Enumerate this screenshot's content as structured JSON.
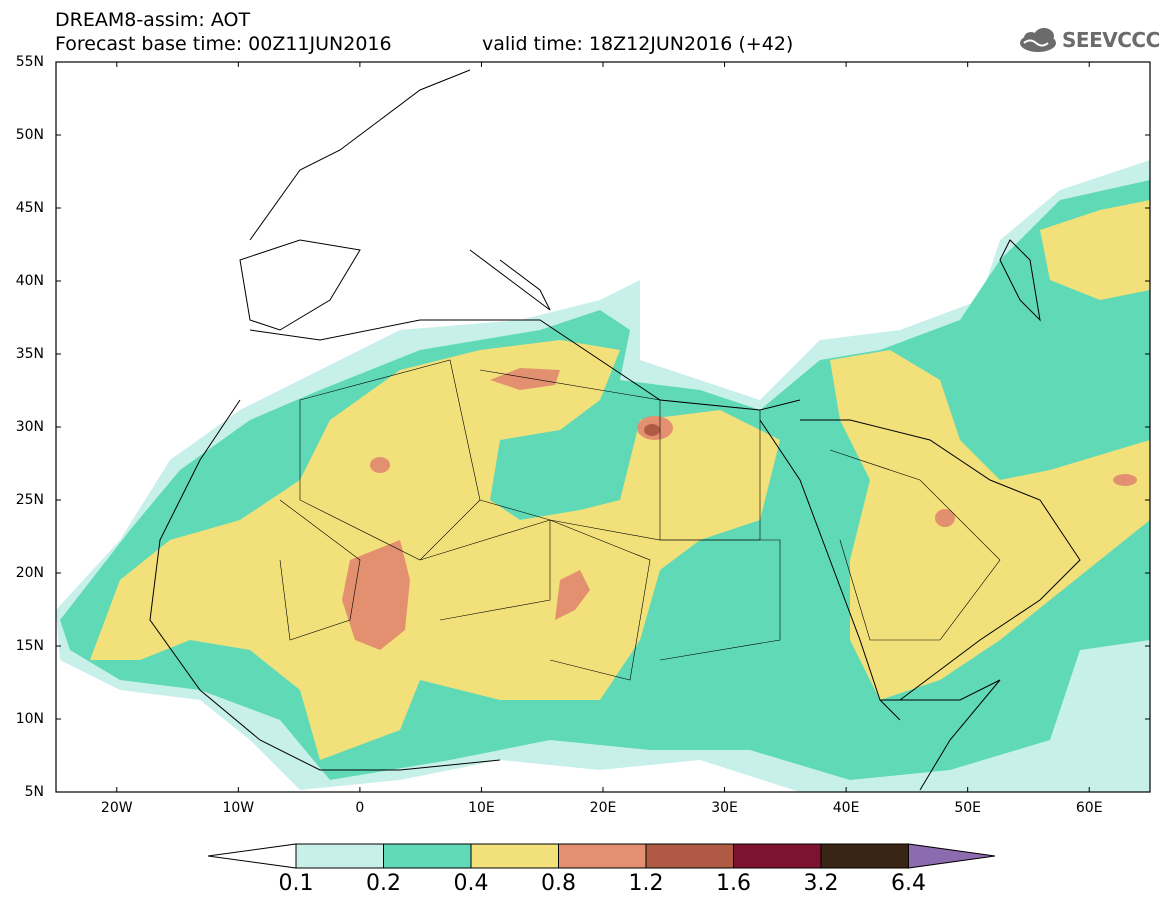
{
  "header": {
    "title": "DREAM8-assim: AOT",
    "base_time": "Forecast base time: 00Z11JUN2016",
    "valid_time": "valid time: 18Z12JUN2016 (+42)",
    "logo_text": "SEEVCCC",
    "logo_icon": "cloud-icon"
  },
  "map": {
    "lat_labels": [
      "55N",
      "50N",
      "45N",
      "40N",
      "35N",
      "30N",
      "25N",
      "20N",
      "15N",
      "10N",
      "5N"
    ],
    "lon_labels": [
      "20W",
      "10W",
      "0",
      "10E",
      "20E",
      "30E",
      "40E",
      "50E",
      "60E"
    ],
    "lat_range": [
      5,
      55
    ],
    "lon_range": [
      -25,
      65
    ]
  },
  "legend": {
    "thresholds": [
      "0.1",
      "0.2",
      "0.4",
      "0.8",
      "1.2",
      "1.6",
      "3.2",
      "6.4"
    ],
    "colors": [
      "#c8f0ea",
      "#5fd9b6",
      "#f2e17a",
      "#e39070",
      "#b05a45",
      "#7d1330",
      "#3a2414",
      "#8c6bb0"
    ],
    "under_color": "#ffffff",
    "over_color": "#8c6bb0"
  }
}
